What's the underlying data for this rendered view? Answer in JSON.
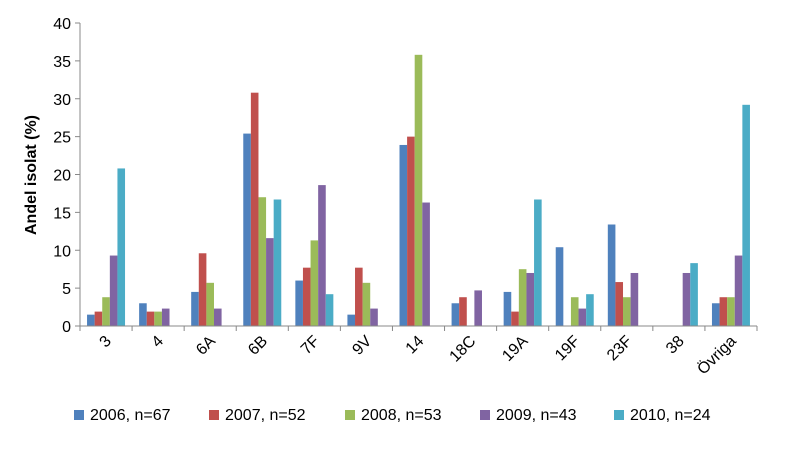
{
  "chart_data": {
    "type": "bar",
    "title": "",
    "xlabel": "",
    "ylabel": "Andel isolat (%)",
    "ylim": [
      0,
      40
    ],
    "yticks": [
      0,
      5,
      10,
      15,
      20,
      25,
      30,
      35,
      40
    ],
    "grid": false,
    "legend_position": "bottom",
    "categories": [
      "3",
      "4",
      "6A",
      "6B",
      "7F",
      "9V",
      "14",
      "18C",
      "19A",
      "19F",
      "23F",
      "38",
      "Övriga"
    ],
    "series": [
      {
        "name": "2006, n=67",
        "color": "#4F81BD",
        "values": [
          1.5,
          3.0,
          4.5,
          25.4,
          6.0,
          1.5,
          23.9,
          3.0,
          4.5,
          10.4,
          13.4,
          0,
          3.0
        ]
      },
      {
        "name": "2007, n=52",
        "color": "#C0504D",
        "values": [
          1.9,
          1.9,
          9.6,
          30.8,
          7.7,
          7.7,
          25.0,
          3.8,
          1.9,
          0,
          5.8,
          0,
          3.8
        ]
      },
      {
        "name": "2008, n=53",
        "color": "#9BBB59",
        "values": [
          3.8,
          1.9,
          5.7,
          17.0,
          11.3,
          5.7,
          35.8,
          0,
          7.5,
          3.8,
          3.8,
          0,
          3.8
        ]
      },
      {
        "name": "2009, n=43",
        "color": "#8064A2",
        "values": [
          9.3,
          2.3,
          2.3,
          11.6,
          18.6,
          2.3,
          16.3,
          4.7,
          7.0,
          2.3,
          7.0,
          7.0,
          9.3
        ]
      },
      {
        "name": "2010, n=24",
        "color": "#4BACC6",
        "values": [
          20.8,
          0,
          0,
          16.7,
          4.2,
          0,
          0,
          0,
          16.7,
          4.2,
          0,
          8.3,
          29.2
        ]
      }
    ]
  }
}
